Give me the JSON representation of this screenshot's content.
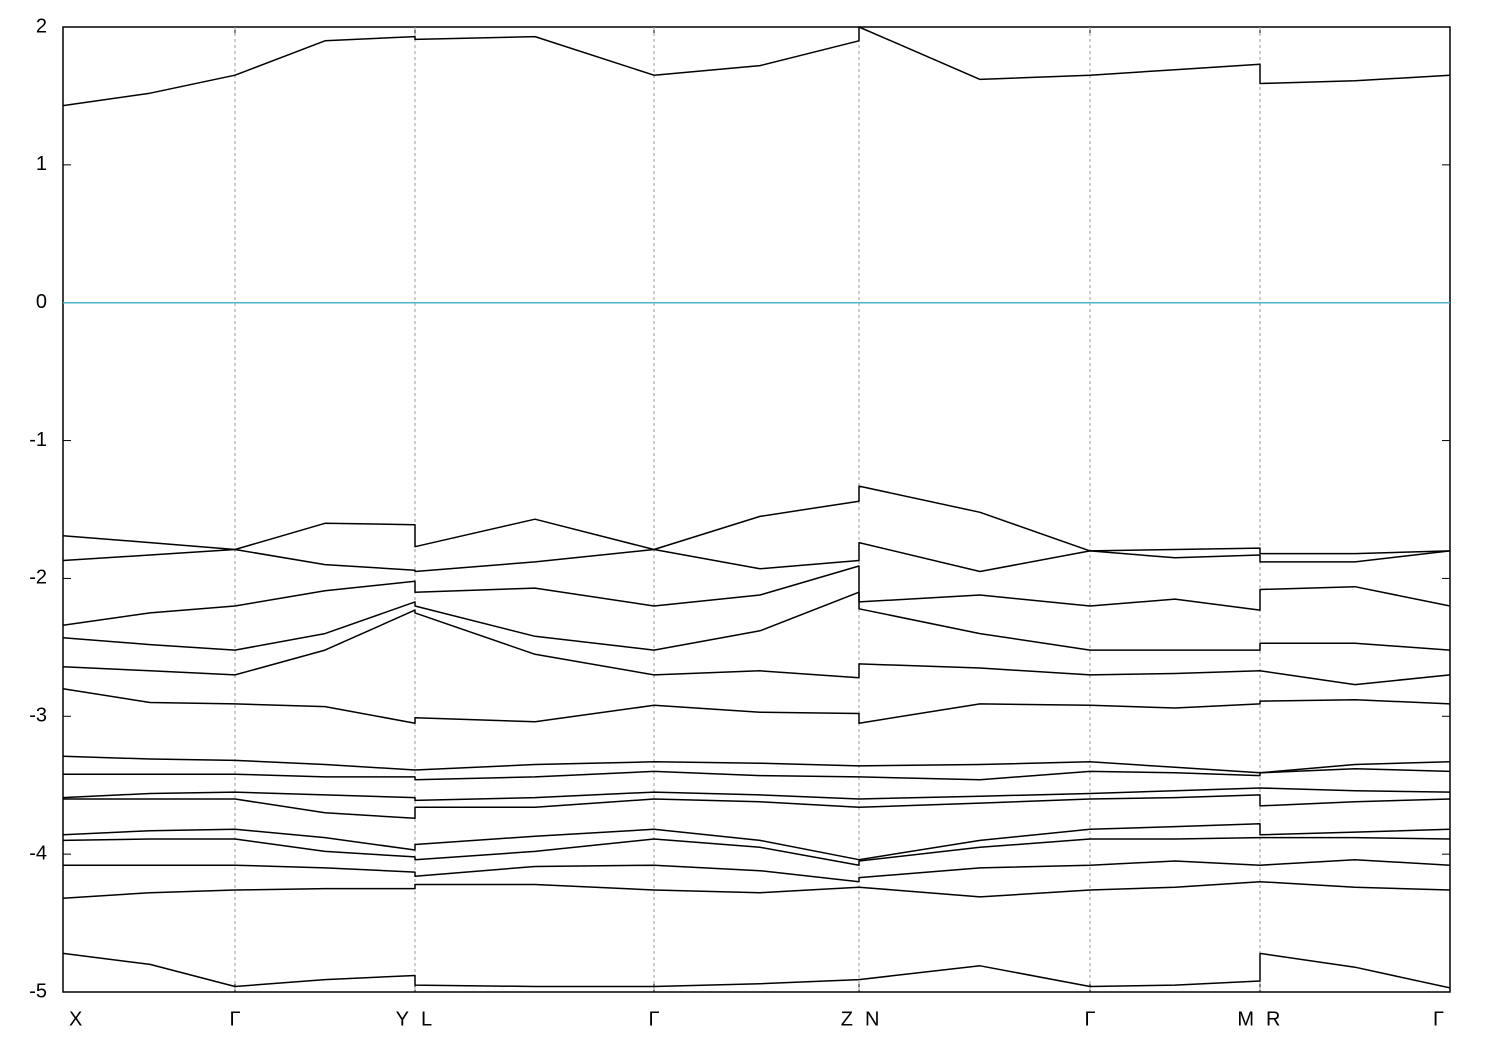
{
  "chart_data": {
    "type": "line",
    "xlim": [
      0,
      1387
    ],
    "ylim": [
      -5,
      2
    ],
    "yticks": [
      2,
      1,
      0,
      -1,
      -2,
      -3,
      -4,
      -5
    ],
    "kpoints": [
      {
        "value": 0,
        "label": "X"
      },
      {
        "value": 172,
        "label": "Γ"
      },
      {
        "value": 352,
        "label": "Y"
      },
      {
        "value": 352,
        "label": "L"
      },
      {
        "value": 591,
        "label": "Γ"
      },
      {
        "value": 796,
        "label": "Z"
      },
      {
        "value": 796,
        "label": "N"
      },
      {
        "value": 1027,
        "label": "Γ"
      },
      {
        "value": 1197,
        "label": "M"
      },
      {
        "value": 1197,
        "label": "R"
      },
      {
        "value": 1387,
        "label": "Γ"
      }
    ],
    "grid": true,
    "hline": {
      "value": 0,
      "color": "#4fb3c8"
    },
    "x": [
      0,
      87,
      172,
      262,
      352,
      352,
      472,
      591,
      697,
      796,
      796,
      917,
      1027,
      1112,
      1197,
      1197,
      1292,
      1387
    ],
    "series": [
      {
        "color": "#000000",
        "values": [
          1.43,
          1.52,
          1.65,
          1.9,
          1.93,
          1.91,
          1.93,
          1.65,
          1.72,
          1.9,
          2.0,
          1.62,
          1.65,
          1.69,
          1.73,
          1.59,
          1.61,
          1.65
        ]
      },
      {
        "color": "#000000",
        "values": [
          -1.69,
          -1.74,
          -1.79,
          -1.6,
          -1.61,
          -1.77,
          -1.57,
          -1.79,
          -1.55,
          -1.44,
          -1.33,
          -1.52,
          -1.8,
          -1.79,
          -1.78,
          -1.82,
          -1.82,
          -1.8
        ]
      },
      {
        "color": "#000000",
        "values": [
          -1.87,
          -1.83,
          -1.79,
          -1.9,
          -1.94,
          -1.95,
          -1.88,
          -1.79,
          -1.93,
          -1.87,
          -1.74,
          -1.95,
          -1.8,
          -1.85,
          -1.83,
          -1.88,
          -1.88,
          -1.8
        ]
      },
      {
        "color": "#000000",
        "values": [
          -2.34,
          -2.25,
          -2.2,
          -2.09,
          -2.02,
          -2.1,
          -2.07,
          -2.2,
          -2.12,
          -1.91,
          -2.17,
          -2.12,
          -2.2,
          -2.15,
          -2.23,
          -2.08,
          -2.06,
          -2.2
        ]
      },
      {
        "color": "#000000",
        "values": [
          -2.43,
          -2.48,
          -2.52,
          -2.4,
          -2.17,
          -2.2,
          -2.42,
          -2.52,
          -2.38,
          -2.1,
          -2.22,
          -2.4,
          -2.52,
          -2.52,
          -2.52,
          -2.47,
          -2.47,
          -2.52
        ]
      },
      {
        "color": "#000000",
        "values": [
          -2.64,
          -2.67,
          -2.7,
          -2.52,
          -2.23,
          -2.25,
          -2.55,
          -2.7,
          -2.67,
          -2.72,
          -2.62,
          -2.65,
          -2.7,
          -2.69,
          -2.67,
          -2.67,
          -2.77,
          -2.7
        ]
      },
      {
        "color": "#000000",
        "values": [
          -2.8,
          -2.9,
          -2.91,
          -2.93,
          -3.05,
          -3.01,
          -3.04,
          -2.92,
          -2.97,
          -2.98,
          -3.05,
          -2.91,
          -2.92,
          -2.94,
          -2.91,
          -2.89,
          -2.88,
          -2.91
        ]
      },
      {
        "color": "#000000",
        "values": [
          -3.29,
          -3.31,
          -3.32,
          -3.35,
          -3.39,
          -3.39,
          -3.35,
          -3.33,
          -3.34,
          -3.36,
          -3.36,
          -3.35,
          -3.33,
          -3.37,
          -3.41,
          -3.41,
          -3.35,
          -3.33
        ]
      },
      {
        "color": "#000000",
        "values": [
          -3.42,
          -3.42,
          -3.42,
          -3.44,
          -3.44,
          -3.46,
          -3.44,
          -3.4,
          -3.43,
          -3.44,
          -3.44,
          -3.46,
          -3.4,
          -3.41,
          -3.43,
          -3.41,
          -3.38,
          -3.4
        ]
      },
      {
        "color": "#000000",
        "values": [
          -3.59,
          -3.56,
          -3.55,
          -3.57,
          -3.59,
          -3.61,
          -3.59,
          -3.55,
          -3.57,
          -3.6,
          -3.6,
          -3.58,
          -3.56,
          -3.54,
          -3.52,
          -3.52,
          -3.54,
          -3.55
        ]
      },
      {
        "color": "#000000",
        "values": [
          -3.6,
          -3.6,
          -3.6,
          -3.7,
          -3.74,
          -3.66,
          -3.66,
          -3.6,
          -3.62,
          -3.66,
          -3.66,
          -3.63,
          -3.6,
          -3.59,
          -3.57,
          -3.65,
          -3.62,
          -3.6
        ]
      },
      {
        "color": "#000000",
        "values": [
          -3.86,
          -3.83,
          -3.82,
          -3.88,
          -3.97,
          -3.93,
          -3.87,
          -3.82,
          -3.9,
          -4.04,
          -4.04,
          -3.9,
          -3.82,
          -3.8,
          -3.78,
          -3.86,
          -3.84,
          -3.82
        ]
      },
      {
        "color": "#000000",
        "values": [
          -3.9,
          -3.89,
          -3.89,
          -3.98,
          -4.02,
          -4.04,
          -3.98,
          -3.89,
          -3.95,
          -4.08,
          -4.05,
          -3.95,
          -3.89,
          -3.89,
          -3.88,
          -3.88,
          -3.88,
          -3.89
        ]
      },
      {
        "color": "#000000",
        "values": [
          -4.08,
          -4.08,
          -4.08,
          -4.1,
          -4.13,
          -4.16,
          -4.09,
          -4.08,
          -4.12,
          -4.2,
          -4.17,
          -4.1,
          -4.08,
          -4.05,
          -4.08,
          -4.08,
          -4.04,
          -4.08
        ]
      },
      {
        "color": "#000000",
        "values": [
          -4.32,
          -4.28,
          -4.26,
          -4.25,
          -4.25,
          -4.22,
          -4.22,
          -4.26,
          -4.28,
          -4.24,
          -4.24,
          -4.31,
          -4.26,
          -4.24,
          -4.2,
          -4.2,
          -4.24,
          -4.26
        ]
      },
      {
        "color": "#000000",
        "values": [
          -4.72,
          -4.8,
          -4.96,
          -4.91,
          -4.88,
          -4.95,
          -4.96,
          -4.96,
          -4.94,
          -4.91,
          -4.91,
          -4.81,
          -4.96,
          -4.95,
          -4.92,
          -4.72,
          -4.82,
          -4.97
        ]
      }
    ]
  }
}
